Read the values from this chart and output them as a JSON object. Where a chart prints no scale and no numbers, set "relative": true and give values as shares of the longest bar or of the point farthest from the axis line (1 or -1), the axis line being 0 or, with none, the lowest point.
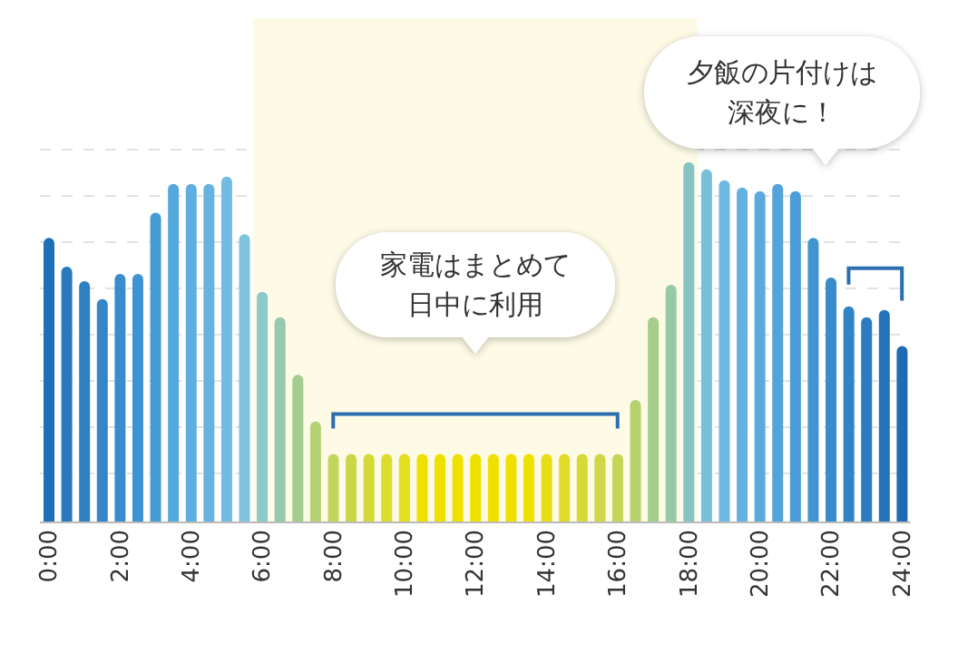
{
  "chart_data": {
    "type": "bar",
    "relative": true,
    "grid": "y",
    "categories": [
      "0:00",
      null,
      null,
      null,
      "2:00",
      null,
      null,
      null,
      "4:00",
      null,
      null,
      null,
      "6:00",
      null,
      null,
      null,
      "8:00",
      null,
      null,
      null,
      "10:00",
      null,
      null,
      null,
      "12:00",
      null,
      null,
      null,
      "14:00",
      null,
      null,
      null,
      "16:00",
      null,
      null,
      null,
      "18:00",
      null,
      null,
      null,
      "20:00",
      null,
      null,
      null,
      "22:00",
      null,
      null,
      null,
      "24:00"
    ],
    "values": [
      0.79,
      0.71,
      0.67,
      0.62,
      0.69,
      0.69,
      0.86,
      0.94,
      0.94,
      0.94,
      0.96,
      0.8,
      0.64,
      0.57,
      0.41,
      0.28,
      0.19,
      0.19,
      0.19,
      0.19,
      0.19,
      0.19,
      0.19,
      0.19,
      0.19,
      0.19,
      0.19,
      0.19,
      0.19,
      0.19,
      0.19,
      0.19,
      0.19,
      0.34,
      0.57,
      0.66,
      1,
      0.98,
      0.95,
      0.93,
      0.92,
      0.94,
      0.92,
      0.79,
      0.68,
      0.6,
      0.57,
      0.59,
      0.49
    ],
    "colors": [
      "#1f6fb8",
      "#2a78be",
      "#2f7fc3",
      "#3486c8",
      "#3a8dcc",
      "#3f93d0",
      "#469bd5",
      "#55a8dc",
      "#5eaee0",
      "#66b3e2",
      "#72bbe4",
      "#7fc3dc",
      "#8cc9c9",
      "#96c9ae",
      "#a5cd8f",
      "#b5d272",
      "#c3d65c",
      "#cbd64a",
      "#d4d93a",
      "#dcdc2c",
      "#e4de20",
      "#f0e000",
      "#f0e000",
      "#f0e000",
      "#f0e000",
      "#f0e000",
      "#f0e000",
      "#f0e000",
      "#e8de18",
      "#e0dc28",
      "#d6d936",
      "#cdd747",
      "#c4d558",
      "#b6d16e",
      "#a6cd8b",
      "#98c9a6",
      "#86c4c4",
      "#79bfd8",
      "#6eb8e3",
      "#64b1e1",
      "#5aaade",
      "#52a4da",
      "#4a9dd6",
      "#4195cf",
      "#388cc9",
      "#3083c4",
      "#2a7bbf",
      "#2574ba",
      "#1f6cb5"
    ],
    "bands": [
      {
        "axis": "x",
        "from": "6:00",
        "to": "18:00",
        "color": "#fdfae6"
      }
    ],
    "annotations": [
      "家電はまとめて日中に利用",
      "夕飯の片付けは深夜に！"
    ]
  }
}
